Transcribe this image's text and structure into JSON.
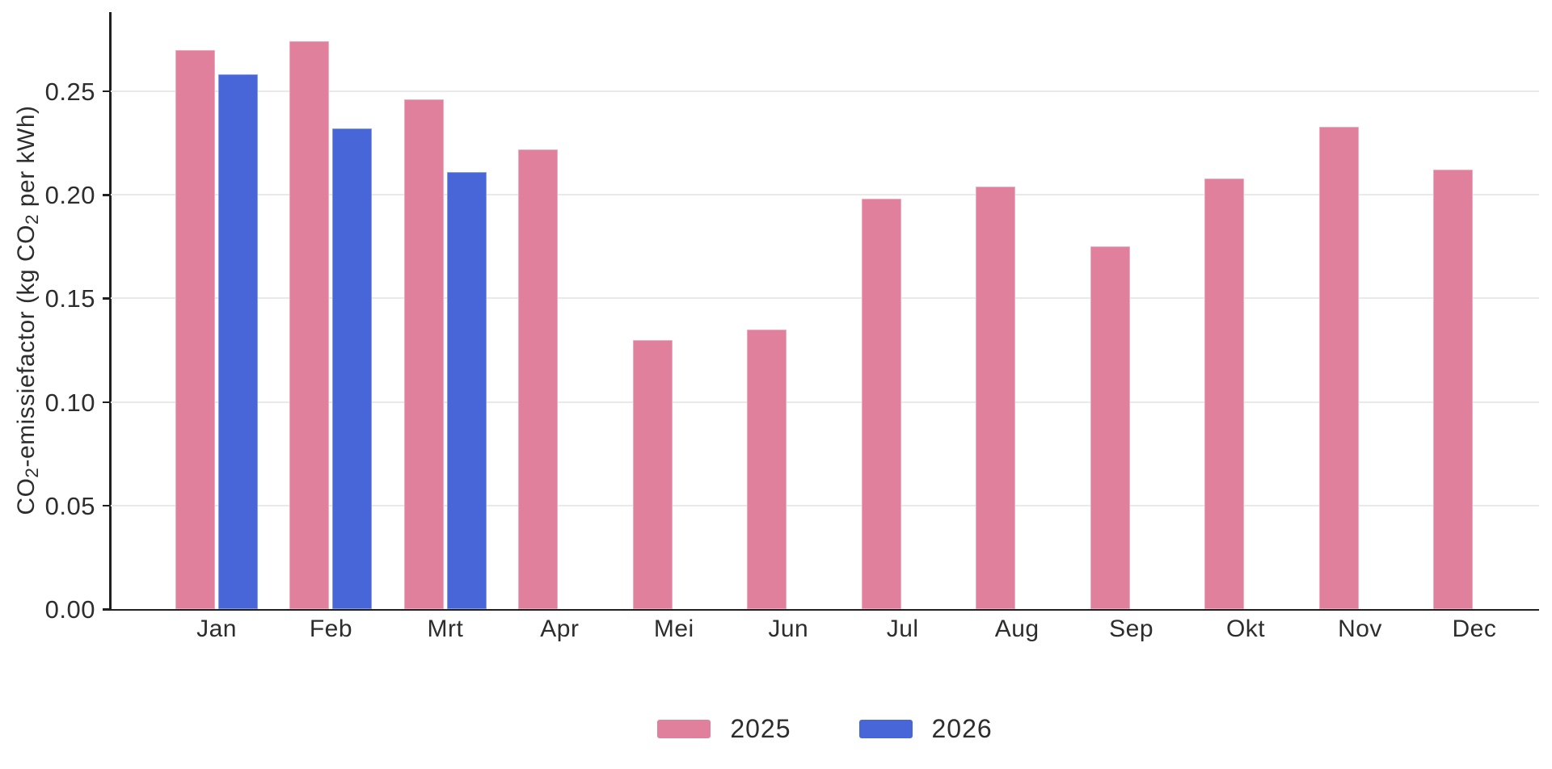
{
  "chart_data": {
    "type": "bar",
    "title": "",
    "ylabel": "CO₂-emissiefactor (kg CO₂ per kWh)",
    "ylabel_parts": [
      "CO",
      "2",
      "-emissiefactor (kg CO",
      "2",
      " per kWh)"
    ],
    "xlabel": "",
    "categories": [
      "Jan",
      "Feb",
      "Mrt",
      "Apr",
      "Mei",
      "Jun",
      "Jul",
      "Aug",
      "Sep",
      "Okt",
      "Nov",
      "Dec"
    ],
    "series": [
      {
        "name": "2025",
        "color": "#e1809d",
        "values": [
          0.27,
          0.274,
          0.246,
          0.222,
          0.13,
          0.135,
          0.198,
          0.204,
          0.175,
          0.208,
          0.233,
          0.212
        ]
      },
      {
        "name": "2026",
        "color": "#4966d9",
        "values": [
          0.258,
          0.232,
          0.211,
          null,
          null,
          null,
          null,
          null,
          null,
          null,
          null,
          null
        ]
      }
    ],
    "y_ticks": [
      {
        "label": "0.00",
        "value": 0.0
      },
      {
        "label": "0.05",
        "value": 0.05
      },
      {
        "label": "0.10",
        "value": 0.1
      },
      {
        "label": "0.15",
        "value": 0.15
      },
      {
        "label": "0.20",
        "value": 0.2
      },
      {
        "label": "0.25",
        "value": 0.25
      }
    ],
    "ylim": [
      0,
      0.2882
    ],
    "grid": "horizontal",
    "legend_position": "bottom-center"
  },
  "colors": {
    "series_2025": "#e1809d",
    "series_2026": "#4966d9",
    "axis": "#202020",
    "gridline": "#e9e9e9",
    "text": "#2d2d2d",
    "background": "#ffffff"
  }
}
